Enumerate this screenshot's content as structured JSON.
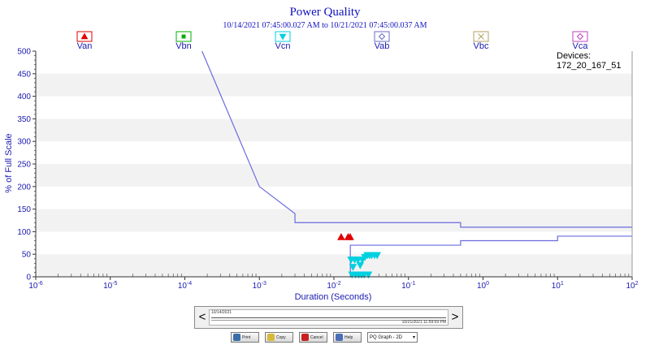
{
  "chart_data": {
    "type": "scatter",
    "title": "Power Quality",
    "subtitle": "10/14/2021 07:45:00.027 AM to 10/21/2021 07:45:00.037 AM",
    "xlabel": "Duration (Seconds)",
    "ylabel": "% of Full Scale",
    "x_scale": "log",
    "xlim": [
      1e-06,
      100
    ],
    "ylim": [
      0,
      500
    ],
    "y_ticks": [
      "0",
      "50",
      "100",
      "150",
      "200",
      "250",
      "300",
      "350",
      "400",
      "450",
      "500"
    ],
    "x_ticks": [
      {
        "base": "10",
        "exp": "-6"
      },
      {
        "base": "10",
        "exp": "-5"
      },
      {
        "base": "10",
        "exp": "-4"
      },
      {
        "base": "10",
        "exp": "-3"
      },
      {
        "base": "10",
        "exp": "-2"
      },
      {
        "base": "10",
        "exp": "-1"
      },
      {
        "base": "10",
        "exp": "0"
      },
      {
        "base": "10",
        "exp": "1"
      },
      {
        "base": "10",
        "exp": "2"
      }
    ],
    "legend": [
      {
        "name": "Van",
        "marker": "triangle-up",
        "color": "#e00000"
      },
      {
        "name": "Vbn",
        "marker": "square",
        "color": "#00b000"
      },
      {
        "name": "Vcn",
        "marker": "triangle-down",
        "color": "#00d0e0"
      },
      {
        "name": "Vab",
        "marker": "diamond",
        "color": "#6a6ac8"
      },
      {
        "name": "Vbc",
        "marker": "x",
        "color": "#b0a060"
      },
      {
        "name": "Vca",
        "marker": "diamond",
        "color": "#c040c0"
      }
    ],
    "upper_curve": [
      [
        0.00017,
        500
      ],
      [
        0.001,
        200
      ],
      [
        0.003,
        140
      ],
      [
        0.003,
        120
      ],
      [
        0.5,
        120
      ],
      [
        0.5,
        110
      ],
      [
        100,
        110
      ]
    ],
    "lower_curve": [
      [
        0.0166,
        0
      ],
      [
        0.0166,
        70
      ],
      [
        0.5,
        70
      ],
      [
        0.5,
        80
      ],
      [
        10,
        80
      ],
      [
        10,
        90
      ],
      [
        100,
        90
      ]
    ],
    "series": [
      {
        "name": "Van",
        "marker": "triangle-up",
        "color": "#e00000",
        "points": [
          [
            0.0125,
            88
          ],
          [
            0.0155,
            88
          ],
          [
            0.0165,
            88
          ]
        ]
      },
      {
        "name": "Vcn",
        "marker": "triangle-down",
        "color": "#00d0e0",
        "points": [
          [
            0.017,
            38
          ],
          [
            0.019,
            38
          ],
          [
            0.021,
            38
          ],
          [
            0.024,
            38
          ],
          [
            0.026,
            44
          ],
          [
            0.028,
            48
          ],
          [
            0.03,
            48
          ],
          [
            0.032,
            48
          ],
          [
            0.035,
            48
          ],
          [
            0.038,
            48
          ],
          [
            0.0175,
            5
          ],
          [
            0.0195,
            5
          ],
          [
            0.0215,
            5
          ],
          [
            0.0235,
            5
          ],
          [
            0.0255,
            5
          ],
          [
            0.029,
            5
          ],
          [
            0.018,
            22
          ],
          [
            0.0225,
            26
          ]
        ]
      }
    ],
    "grid": "horizontal-bands",
    "devices_label": "Devices:",
    "devices_value": "172_20_167_51"
  },
  "scroller": {
    "start_date": "10/14/2021",
    "end_date": "10/21/2021 11:59:59 PM",
    "left_arrow": "<",
    "right_arrow": ">"
  },
  "toolbar": {
    "print_label": "Print",
    "copy_label": "Copy",
    "cancel_label": "Cancel",
    "help_label": "Help",
    "graph_type": "PQ Graph - 2D"
  }
}
